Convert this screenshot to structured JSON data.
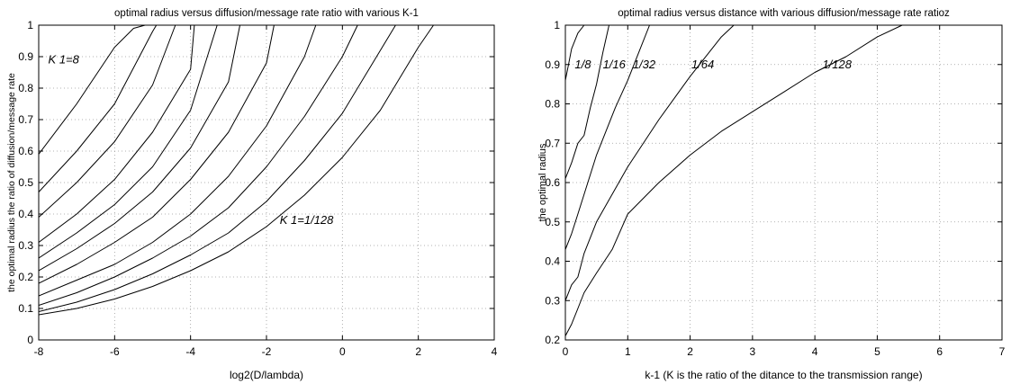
{
  "chart_data": [
    {
      "type": "line",
      "title": "optimal radius versus diffusion/message rate ratio with various K-1",
      "xlabel": "log2(D/lambda)",
      "ylabel": "the optimal radius the ratio of diffusion/message rate",
      "xlim": [
        -8,
        4
      ],
      "ylim": [
        0,
        1
      ],
      "xticks": [
        -8,
        -6,
        -4,
        -2,
        0,
        2,
        4
      ],
      "yticks": [
        0,
        0.1,
        0.2,
        0.3,
        0.4,
        0.5,
        0.6,
        0.7,
        0.8,
        0.9,
        1
      ],
      "grid": true,
      "annotations": [
        {
          "text": "K 1=8",
          "x": -7.75,
          "y": 0.89
        },
        {
          "text": "K 1=1/128",
          "x": -1.65,
          "y": 0.38
        }
      ],
      "series": [
        {
          "x": [
            -8,
            -7,
            -6,
            -5.5,
            -5.2
          ],
          "y": [
            0.59,
            0.75,
            0.93,
            0.99,
            1.0
          ]
        },
        {
          "x": [
            -8,
            -7,
            -6,
            -5,
            -4.9
          ],
          "y": [
            0.47,
            0.6,
            0.75,
            0.98,
            1.0
          ]
        },
        {
          "x": [
            -8,
            -7,
            -6,
            -5,
            -4.4
          ],
          "y": [
            0.39,
            0.5,
            0.63,
            0.81,
            1.0
          ]
        },
        {
          "x": [
            -8,
            -7,
            -6,
            -5,
            -4,
            -3.9
          ],
          "y": [
            0.31,
            0.4,
            0.51,
            0.66,
            0.86,
            1.0
          ]
        },
        {
          "x": [
            -8,
            -7,
            -6,
            -5,
            -4,
            -3.3
          ],
          "y": [
            0.26,
            0.34,
            0.43,
            0.55,
            0.73,
            1.0
          ]
        },
        {
          "x": [
            -8,
            -7,
            -6,
            -5,
            -4,
            -3,
            -2.7
          ],
          "y": [
            0.22,
            0.29,
            0.37,
            0.47,
            0.61,
            0.82,
            1.0
          ]
        },
        {
          "x": [
            -8,
            -7,
            -6,
            -5,
            -4,
            -3,
            -2,
            -1.8
          ],
          "y": [
            0.18,
            0.24,
            0.31,
            0.39,
            0.51,
            0.66,
            0.88,
            1.0
          ]
        },
        {
          "x": [
            -8,
            -7,
            -6,
            -5,
            -4,
            -3,
            -2,
            -1,
            -0.7
          ],
          "y": [
            0.14,
            0.19,
            0.24,
            0.31,
            0.4,
            0.52,
            0.68,
            0.9,
            1.0
          ]
        },
        {
          "x": [
            -8,
            -7,
            -6,
            -5,
            -4,
            -3,
            -2,
            -1,
            0,
            0.4
          ],
          "y": [
            0.11,
            0.15,
            0.2,
            0.26,
            0.33,
            0.42,
            0.55,
            0.71,
            0.9,
            1.0
          ]
        },
        {
          "x": [
            -8,
            -7,
            -6,
            -5,
            -4,
            -3,
            -2,
            -1,
            0,
            1,
            1.4
          ],
          "y": [
            0.09,
            0.12,
            0.16,
            0.21,
            0.27,
            0.34,
            0.44,
            0.57,
            0.72,
            0.92,
            1.0
          ]
        },
        {
          "x": [
            -8,
            -7,
            -6,
            -5,
            -4,
            -3,
            -2,
            -1,
            0,
            1,
            2,
            2.4
          ],
          "y": [
            0.08,
            0.1,
            0.13,
            0.17,
            0.22,
            0.28,
            0.36,
            0.46,
            0.58,
            0.73,
            0.93,
            1.0
          ]
        }
      ]
    },
    {
      "type": "line",
      "title": "optimal radius versus distance with various diffusion/message rate ratioz",
      "xlabel": "k-1 (K is the ratio of the ditance to the transmission range)",
      "ylabel": "the optimal radius",
      "xlim": [
        0,
        7
      ],
      "ylim": [
        0.2,
        1
      ],
      "xticks": [
        0,
        1,
        2,
        3,
        4,
        5,
        6,
        7
      ],
      "yticks": [
        0.2,
        0.3,
        0.4,
        0.5,
        0.6,
        0.7,
        0.8,
        0.9,
        1
      ],
      "grid": true,
      "annotations": [
        {
          "text": "1/8",
          "x": 0.15,
          "y": 0.9
        },
        {
          "text": "1/16",
          "x": 0.6,
          "y": 0.9
        },
        {
          "text": "1/32",
          "x": 1.08,
          "y": 0.9
        },
        {
          "text": "1/64",
          "x": 2.02,
          "y": 0.9
        },
        {
          "text": "1/128",
          "x": 4.12,
          "y": 0.9
        }
      ],
      "series": [
        {
          "name": "1/8",
          "x": [
            0,
            0.05,
            0.1,
            0.2,
            0.3
          ],
          "y": [
            0.86,
            0.9,
            0.94,
            0.98,
            1.0
          ]
        },
        {
          "name": "1/16",
          "x": [
            0,
            0.1,
            0.2,
            0.3,
            0.4,
            0.5,
            0.6,
            0.7
          ],
          "y": [
            0.61,
            0.65,
            0.7,
            0.72,
            0.79,
            0.85,
            0.93,
            1.0
          ]
        },
        {
          "name": "1/32",
          "x": [
            0,
            0.1,
            0.2,
            0.3,
            0.5,
            0.8,
            1.0,
            1.2,
            1.35
          ],
          "y": [
            0.43,
            0.47,
            0.52,
            0.57,
            0.67,
            0.79,
            0.86,
            0.94,
            1.0
          ]
        },
        {
          "name": "1/64",
          "x": [
            0,
            0.1,
            0.2,
            0.3,
            0.5,
            1.0,
            1.5,
            2.0,
            2.5,
            2.7
          ],
          "y": [
            0.3,
            0.34,
            0.36,
            0.42,
            0.5,
            0.64,
            0.76,
            0.87,
            0.97,
            1.0
          ]
        },
        {
          "name": "1/128",
          "x": [
            0,
            0.1,
            0.2,
            0.3,
            0.5,
            0.75,
            1.0,
            1.5,
            2.0,
            2.5,
            3.0,
            3.5,
            4.0,
            4.5,
            5.0,
            5.4
          ],
          "y": [
            0.21,
            0.24,
            0.28,
            0.32,
            0.37,
            0.43,
            0.52,
            0.6,
            0.67,
            0.73,
            0.78,
            0.83,
            0.88,
            0.92,
            0.97,
            1.0
          ]
        }
      ]
    }
  ]
}
